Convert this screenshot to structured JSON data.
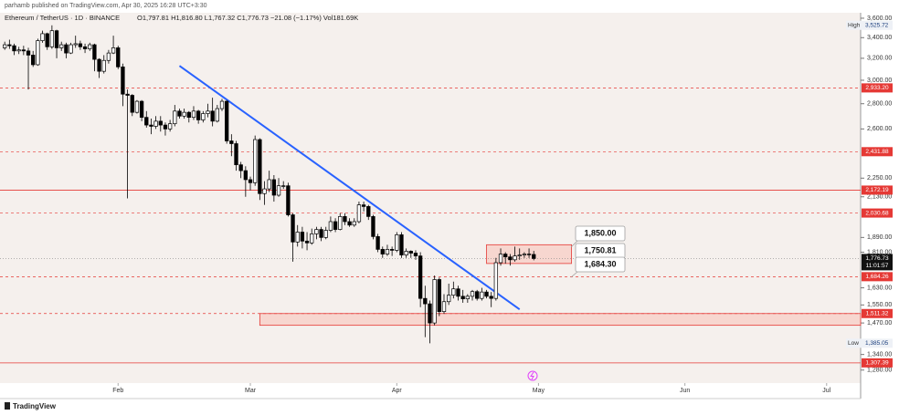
{
  "chart_data": {
    "type": "candlestick",
    "header": "parhamb published on TradingView.com, Apr 30, 2025 16:28 UTC+3:30",
    "title": "Ethereum / TetherUS · 1D · BINANCE",
    "legend_text": "O1,797.81 H1,816.80 L1,767.32 C1,776.73 −21.08 (−1.17%) Vol181.69K",
    "footer": "TradingView",
    "up_color": "#ffffff",
    "down_color": "#000000",
    "log_scale": true,
    "xlim": [
      -1,
      181.2
    ],
    "xticks": [
      {
        "value": 24,
        "label": "Feb"
      },
      {
        "value": 52,
        "label": "Mar"
      },
      {
        "value": 83,
        "label": "Apr"
      },
      {
        "value": 113,
        "label": "May"
      },
      {
        "value": 144,
        "label": "Jun"
      },
      {
        "value": 174,
        "label": "Jul"
      }
    ],
    "ylim": [
      1232,
      3658
    ],
    "yticks": [
      {
        "value": 3600,
        "label": "3,600.00"
      },
      {
        "value": 3400,
        "label": "3,400.00"
      },
      {
        "value": 3200,
        "label": "3,200.00"
      },
      {
        "value": 3000,
        "label": "3,000.00"
      },
      {
        "value": 2800,
        "label": "2,800.00"
      },
      {
        "value": 2600,
        "label": "2,600.00"
      },
      {
        "value": 2250,
        "label": "2,250.00"
      },
      {
        "value": 2130,
        "label": "2,130.00"
      },
      {
        "value": 1890,
        "label": "1,890.00"
      },
      {
        "value": 1810,
        "label": "1,810.00"
      },
      {
        "value": 1630,
        "label": "1,630.00"
      },
      {
        "value": 1550,
        "label": "1,550.00"
      },
      {
        "value": 1470,
        "label": "1,470.00"
      },
      {
        "value": 1340,
        "label": "1,340.00"
      },
      {
        "value": 1280,
        "label": "1,280.00"
      }
    ],
    "open": [
      3300,
      3330,
      3320,
      3270,
      3280,
      3270,
      3230,
      3140,
      3370,
      3440,
      3310,
      3470,
      3300,
      3330,
      3250,
      3330,
      3340,
      3310,
      3290,
      3330,
      3190,
      3080,
      3180,
      3250,
      3300,
      3120,
      2880,
      2870,
      2730,
      2820,
      2690,
      2630,
      2620,
      2660,
      2630,
      2600,
      2640,
      2740,
      2700,
      2730,
      2690,
      2740,
      2670,
      2720,
      2740,
      2660,
      2760,
      2820,
      2510,
      2490,
      2340,
      2300,
      2240,
      2220,
      2520,
      2150,
      2180,
      2240,
      2140,
      2200,
      2200,
      2020,
      1865,
      1920,
      1870,
      1860,
      1910,
      1935,
      1890,
      1930,
      1980,
      1935,
      2010,
      1980,
      1960,
      1980,
      2080,
      2070,
      2010,
      1895,
      1825,
      1800,
      1825,
      1820,
      1905,
      1795,
      1815,
      1805,
      1790,
      1580,
      1555,
      1470,
      1670,
      1520,
      1565,
      1595,
      1625,
      1590,
      1578,
      1590,
      1612,
      1580,
      1610,
      1590,
      1580,
      1755,
      1800,
      1785,
      1770,
      1790,
      1795,
      1800,
      1797.81
    ],
    "high": [
      3360,
      3380,
      3340,
      3310,
      3320,
      3300,
      3270,
      3390,
      3470,
      3450,
      3525.72,
      3480,
      3360,
      3350,
      3350,
      3420,
      3370,
      3340,
      3350,
      3340,
      3200,
      3230,
      3280,
      3420,
      3320,
      3150,
      2920,
      2880,
      2830,
      2830,
      2740,
      2680,
      2700,
      2700,
      2650,
      2670,
      2790,
      2760,
      2760,
      2740,
      2780,
      2750,
      2740,
      2800,
      2850,
      2790,
      2840,
      2830,
      2560,
      2510,
      2360,
      2330,
      2260,
      2550,
      2530,
      2230,
      2300,
      2270,
      2250,
      2230,
      2220,
      2030,
      1960,
      1950,
      1920,
      1940,
      1950,
      1950,
      1950,
      2010,
      2000,
      2030,
      2030,
      2000,
      2000,
      2100,
      2100,
      2080,
      2020,
      1910,
      1840,
      1850,
      1840,
      1920,
      1920,
      1830,
      1820,
      1820,
      1810,
      1640,
      1570,
      1690,
      1680,
      1600,
      1650,
      1660,
      1640,
      1620,
      1600,
      1620,
      1620,
      1630,
      1620,
      1610,
      1780,
      1830,
      1810,
      1800,
      1840,
      1830,
      1810,
      1830,
      1816.8
    ],
    "low": [
      3280,
      3290,
      3230,
      3240,
      3230,
      2920,
      3120,
      3130,
      3350,
      3280,
      3290,
      3200,
      3270,
      3200,
      3240,
      3300,
      3280,
      3250,
      3270,
      3080,
      3020,
      3060,
      3150,
      3240,
      3100,
      2780,
      2120,
      2700,
      2720,
      2660,
      2610,
      2560,
      2600,
      2580,
      2550,
      2580,
      2620,
      2680,
      2680,
      2650,
      2670,
      2640,
      2650,
      2690,
      2620,
      2650,
      2740,
      2490,
      2400,
      2300,
      2250,
      2130,
      2170,
      2200,
      2110,
      2080,
      2160,
      2100,
      2130,
      2180,
      2010,
      1760,
      1840,
      1830,
      1820,
      1850,
      1880,
      1870,
      1880,
      1920,
      1920,
      1930,
      1960,
      1950,
      1950,
      1970,
      2040,
      1990,
      1880,
      1810,
      1780,
      1790,
      1790,
      1810,
      1780,
      1780,
      1780,
      1770,
      1540,
      1410,
      1385.05,
      1460,
      1500,
      1510,
      1550,
      1580,
      1570,
      1560,
      1560,
      1570,
      1570,
      1570,
      1580,
      1540,
      1570,
      1740,
      1750,
      1740,
      1760,
      1770,
      1780,
      1780,
      1767.32
    ],
    "close": [
      3330,
      3320,
      3270,
      3280,
      3270,
      3230,
      3140,
      3370,
      3440,
      3310,
      3470,
      3300,
      3330,
      3250,
      3330,
      3340,
      3310,
      3290,
      3330,
      3190,
      3080,
      3180,
      3250,
      3300,
      3120,
      2880,
      2870,
      2730,
      2820,
      2690,
      2630,
      2620,
      2660,
      2630,
      2600,
      2640,
      2740,
      2700,
      2730,
      2690,
      2740,
      2670,
      2720,
      2740,
      2660,
      2760,
      2820,
      2510,
      2490,
      2340,
      2300,
      2240,
      2220,
      2520,
      2150,
      2180,
      2240,
      2140,
      2200,
      2200,
      2020,
      1865,
      1920,
      1870,
      1860,
      1910,
      1935,
      1890,
      1930,
      1980,
      1935,
      2010,
      1980,
      1960,
      1980,
      2080,
      2070,
      2010,
      1895,
      1825,
      1800,
      1825,
      1820,
      1905,
      1795,
      1815,
      1805,
      1790,
      1580,
      1555,
      1470,
      1670,
      1520,
      1565,
      1595,
      1625,
      1590,
      1578,
      1590,
      1612,
      1580,
      1610,
      1590,
      1580,
      1755,
      1800,
      1785,
      1770,
      1790,
      1795,
      1800,
      1797.81,
      1776.73
    ],
    "levels": [
      {
        "value": 2933.2,
        "label": "2,933.20",
        "style": "dashed"
      },
      {
        "value": 2431.88,
        "label": "2,431.88",
        "style": "dashed"
      },
      {
        "value": 2172.19,
        "label": "2,172.19",
        "style": "solid"
      },
      {
        "value": 2030.68,
        "label": "2,030.68",
        "style": "dashed"
      },
      {
        "value": 1684.26,
        "label": "1,684.26",
        "style": "dashed"
      },
      {
        "value": 1511.32,
        "label": "1,511.32",
        "style": "dashed"
      },
      {
        "value": 1307.39,
        "label": "1,307.39",
        "style": "solid"
      }
    ],
    "level_color": "#e53935",
    "last_price": {
      "value": 1776.73,
      "label": "1,776.73",
      "countdown": "11:01:57"
    },
    "high_marker": {
      "text": "High",
      "value": 3525.72,
      "label": "3,525.72"
    },
    "low_marker": {
      "text": "Low",
      "value": 1385.05,
      "label": "1,385.05"
    },
    "zones": [
      {
        "x": [
          102,
          120
        ],
        "y": [
          1750.81,
          1850
        ]
      },
      {
        "x": [
          54,
          181.2
        ],
        "y": [
          1460,
          1511.32
        ]
      }
    ],
    "zone_color": "#f8cfc7",
    "trendline": {
      "x": [
        37,
        109
      ],
      "y": [
        3130,
        1530
      ],
      "color": "#2962ff"
    },
    "annotations": [
      {
        "value": 1850,
        "label": "1,850.00"
      },
      {
        "value": 1750.81,
        "label": "1,750.81"
      },
      {
        "value": 1684.3,
        "label": "1,684.30"
      }
    ]
  }
}
